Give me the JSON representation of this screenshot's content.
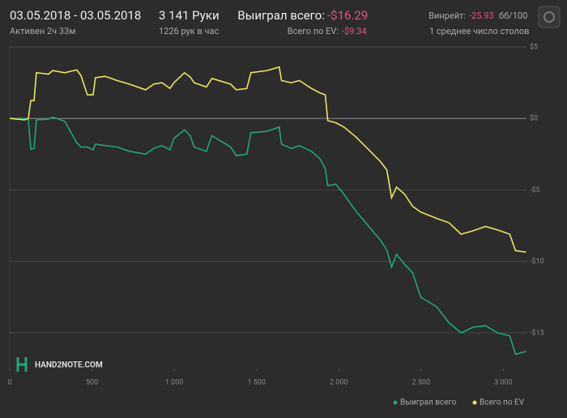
{
  "header": {
    "date_range": "03.05.2018 - 03.05.2018",
    "active": "Активен 2ч 33м",
    "hands": "3 141 Руки",
    "hands_per_hour": "1226 рук в час",
    "won_label": "Выиграл всего:",
    "won_value": "-$16.29",
    "ev_label": "Всего по EV:",
    "ev_value": "-$9.34",
    "winrate_label": "Винрейт:",
    "winrate_value": "-25.93",
    "winrate_unit": "бб/100",
    "tables": "1 среднее число столов",
    "logo": "HAND2NOTE.COM"
  },
  "chart_data": {
    "type": "line",
    "x": [
      0,
      89,
      113,
      128,
      148,
      162,
      236,
      261,
      334,
      408,
      433,
      472,
      507,
      521,
      580,
      654,
      728,
      826,
      875,
      925,
      974,
      998,
      1062,
      1097,
      1121,
      1195,
      1229,
      1343,
      1377,
      1441,
      1466,
      1564,
      1638,
      1652,
      1711,
      1761,
      1834,
      1884,
      1918,
      1933,
      1982,
      2031,
      2105,
      2179,
      2252,
      2292,
      2321,
      2351,
      2400,
      2449,
      2498,
      2597,
      2670,
      2744,
      2818,
      2892,
      2966,
      3039,
      3074,
      3138
    ],
    "series": [
      {
        "name": "Выиграл всего",
        "color": "#1fa67a",
        "values": [
          0,
          0,
          -0.05,
          -2.15,
          -2.1,
          -0.1,
          -0.05,
          0.1,
          -0.2,
          -1.7,
          -2.0,
          -2.0,
          -2.2,
          -1.8,
          -1.9,
          -2.0,
          -2.3,
          -2.5,
          -2.1,
          -1.9,
          -2.2,
          -1.4,
          -0.8,
          -1.2,
          -2.0,
          -2.3,
          -1.2,
          -2.0,
          -2.6,
          -2.5,
          -1.0,
          -0.9,
          -0.6,
          -1.8,
          -2.1,
          -1.9,
          -2.3,
          -2.8,
          -3.5,
          -4.7,
          -4.6,
          -5.3,
          -6.5,
          -7.5,
          -8.5,
          -9.2,
          -10.4,
          -9.5,
          -10.2,
          -10.8,
          -12.5,
          -13.2,
          -14.3,
          -15.0,
          -14.6,
          -14.5,
          -15.0,
          -15.2,
          -16.5,
          -16.3
        ]
      },
      {
        "name": "Всего по EV",
        "color": "#eee45a",
        "values": [
          0,
          -0.1,
          0,
          1.25,
          1.25,
          3.2,
          3.1,
          3.35,
          3.2,
          3.4,
          3.0,
          1.65,
          1.65,
          2.85,
          2.95,
          2.65,
          2.4,
          2.0,
          2.4,
          2.5,
          2.1,
          2.5,
          3.2,
          2.9,
          2.5,
          2.2,
          2.8,
          2.4,
          2.0,
          2.1,
          3.2,
          3.35,
          3.6,
          2.65,
          2.5,
          2.65,
          2.1,
          1.8,
          1.65,
          -0.15,
          -0.3,
          -0.6,
          -1.3,
          -2.15,
          -3.0,
          -3.6,
          -5.55,
          -4.8,
          -5.3,
          -6.15,
          -6.55,
          -7.0,
          -7.3,
          -8.1,
          -7.85,
          -7.55,
          -7.8,
          -8.1,
          -9.25,
          -9.35
        ]
      }
    ],
    "xlim": [
      0,
      3141
    ],
    "xticks": [
      0,
      500,
      {
        "value": 1000,
        "label": "1 000"
      },
      {
        "value": 1500,
        "label": "1 500"
      },
      {
        "value": 2000,
        "label": "2 000"
      },
      {
        "value": 2500,
        "label": "2 500"
      },
      {
        "value": 3000,
        "label": "3 000"
      }
    ],
    "ylim": [
      -17.5,
      5
    ],
    "yticks": [
      {
        "value": 5,
        "label": "$5"
      },
      {
        "value": 0,
        "label": "$0"
      },
      {
        "value": -5,
        "label": "-$5"
      },
      {
        "value": -10,
        "label": "-$10"
      },
      {
        "value": -15,
        "label": "-$15"
      }
    ],
    "grid": true,
    "legend": "bottom-right"
  }
}
